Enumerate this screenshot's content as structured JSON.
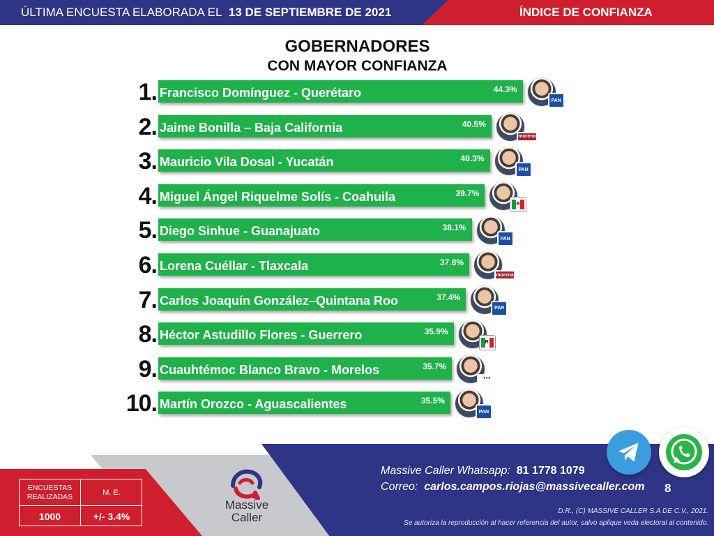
{
  "header": {
    "left_prefix": "ÚLTIMA ENCUESTA ELABORADA EL",
    "left_date": "13 DE SEPTIEMBRE DE 2021",
    "right_title": "ÍNDICE DE CONFIANZA",
    "colors": {
      "blue": "#2e3486",
      "red": "#cf1f2e"
    }
  },
  "title": {
    "line1": "GOBERNADORES",
    "line2": "CON MAYOR CONFIANZA"
  },
  "chart_data": {
    "type": "bar",
    "orientation": "horizontal",
    "title": "GOBERNADORES CON MAYOR CONFIANZA",
    "bar_color": "#1fb24a",
    "ranks": [
      "1.",
      "2.",
      "3.",
      "4.",
      "5.",
      "6.",
      "7.",
      "8.",
      "9.",
      "10."
    ],
    "categories": [
      "Francisco Domínguez - Querétaro",
      "Jaime Bonilla – Baja California",
      "Mauricio Vila Dosal - Yucatán",
      "Miguel Ángel Riquelme Solís - Coahuila",
      "Diego Sinhue - Guanajuato",
      "Lorena Cuéllar - Tlaxcala",
      "Carlos Joaquín González–Quintana Roo",
      "Héctor Astudillo Flores - Guerrero",
      "Cuauhtémoc Blanco Bravo - Morelos",
      "Martín Orozco - Aguascalientes"
    ],
    "values": [
      44.3,
      40.5,
      40.3,
      39.7,
      38.1,
      37.8,
      37.4,
      35.9,
      35.7,
      35.5
    ],
    "value_labels": [
      "44.3%",
      "40.5%",
      "40.3%",
      "39.7%",
      "38.1%",
      "37.8%",
      "37.4%",
      "35.9%",
      "35.7%",
      "35.5%"
    ],
    "parties": [
      "PAN",
      "morena",
      "PAN",
      "PRI",
      "PAN",
      "morena",
      "PAN",
      "PRI",
      "PES",
      "PAN"
    ],
    "xlim": [
      0,
      50
    ]
  },
  "stats": {
    "surveys_label": "ENCUESTAS REALIZADAS",
    "margin_label": "M. E.",
    "surveys_value": "1000",
    "margin_value": "+/- 3.4%"
  },
  "logo": {
    "name_line1": "Massive",
    "name_line2": "Caller"
  },
  "contact": {
    "whatsapp_label": "Massive Caller Whatsapp:",
    "whatsapp_number": "81 1778 1079",
    "email_label": "Correo:",
    "email": "carlos.campos.riojas@massivecaller.com",
    "page_number": "8"
  },
  "legal": {
    "line1": "D.R., (C) MASSIVE CALLER S.A DE C.V., 2021.",
    "line2": "Se autoriza la reproducción al hacer referencia del autor, salvo aplique veda electoral al contenido."
  },
  "icons": {
    "telegram": "telegram-icon",
    "whatsapp": "whatsapp-icon"
  }
}
